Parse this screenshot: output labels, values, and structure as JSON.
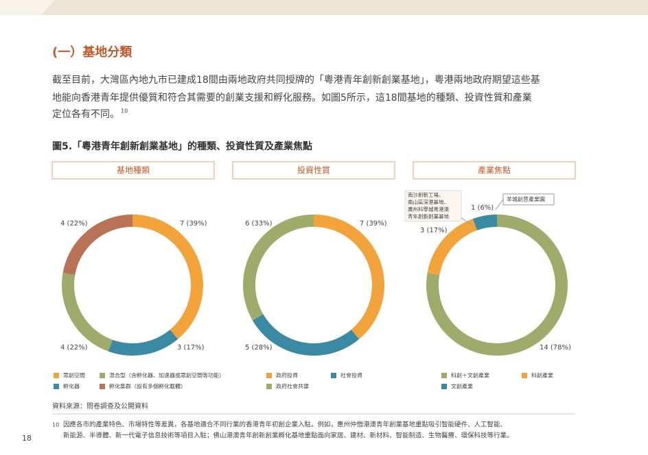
{
  "section_title": "(一）基地分類",
  "paragraph": [
    "截至目前，大灣區內地九市已建成18間由兩地政府共同授牌的「粵港青年創新創業基地」，粵港兩地政府期望這些基",
    "地能向香港青年提供優質和符合其需要的創業支援和孵化服務。如圖5所示，這18間基地的種類、投資性質和產業",
    "定位各有不同。"
  ],
  "paragraph_note": "10",
  "figure_title": "圖5.「粵港青年創新創業基地」的種類、投資性質及產業焦點",
  "chart_data": [
    {
      "type": "donut",
      "title": "基地種類",
      "categories": [
        "眾創空間",
        "孵化器",
        "混合型（含孵化器、加速器或眾創空間等功能）",
        "孵化集群（設有多個孵化載體）"
      ],
      "values": [
        7,
        3,
        4,
        4
      ],
      "value_labels": [
        "7 (39%)",
        "3 (17%)",
        "4 (22%)",
        "4 (22%)"
      ],
      "colors": [
        "#f2a33a",
        "#3b8aa3",
        "#9fab6a",
        "#b87256"
      ]
    },
    {
      "type": "donut",
      "title": "投資性質",
      "categories": [
        "政府投資",
        "社會投資",
        "政府社會共建"
      ],
      "values": [
        7,
        5,
        6
      ],
      "value_labels": [
        "7 (39%)",
        "5 (28%)",
        "6 (33%)"
      ],
      "colors": [
        "#f2a33a",
        "#3b8aa3",
        "#9fab6a"
      ]
    },
    {
      "type": "donut",
      "title": "產業焦點",
      "categories": [
        "科創＋文創產業",
        "科創產業",
        "文創產業"
      ],
      "values": [
        14,
        3,
        1
      ],
      "value_labels": [
        "14 (78%)",
        "3 (17%)",
        "1 (6%)"
      ],
      "colors": [
        "#9fab6a",
        "#f2a33a",
        "#3b8aa3"
      ],
      "annotations": [
        {
          "lines": [
            "南沙創新工場、",
            "南山區深港基地、",
            "廣州科學城粵港澳",
            "青年創新創業基地"
          ]
        },
        {
          "lines": [
            "羊城創意產業園"
          ]
        }
      ]
    }
  ],
  "source": "資料來源：問卷調查及公開資料",
  "footnote": {
    "number": "10",
    "lines": [
      "因應各市的產業特色、市場特性等差異，各基地適合不同行業的香港青年初創企業入駐。例如，惠州仲愷港澳青年創業基地重點吸引智能硬件、人工智能、",
      "新能源、半導體、新一代電子信息技術等項目入駐；佛山港澳青年創新創業孵化基地重點面向家居、建材、新材料、智能制造、生物醫療、環保科技等行業。"
    ]
  },
  "page_number": "18"
}
